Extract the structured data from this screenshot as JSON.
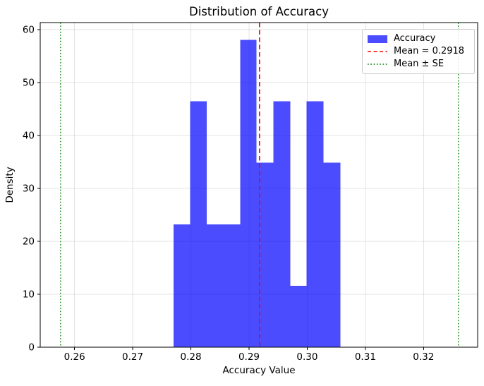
{
  "chart_data": {
    "type": "bar",
    "subtype": "histogram",
    "title": "Distribution of Accuracy",
    "xlabel": "Accuracy Value",
    "ylabel": "Density",
    "series_label": "Accuracy",
    "bin_edges": [
      0.277,
      0.2799,
      0.2827,
      0.2856,
      0.2885,
      0.2913,
      0.2942,
      0.2971,
      0.2999,
      0.3028,
      0.3057
    ],
    "densities": [
      23.2,
      46.5,
      23.2,
      23.2,
      58.1,
      34.9,
      46.5,
      11.6,
      46.5,
      34.9
    ],
    "counts": [
      2,
      4,
      2,
      2,
      5,
      3,
      4,
      1,
      4,
      3
    ],
    "mean_line": {
      "label": "Mean = 0.2918",
      "value": 0.2918,
      "style": "dashed"
    },
    "se_lines": {
      "label": "Mean ± SE",
      "values": [
        0.2576,
        0.326
      ],
      "style": "dotted"
    },
    "x_ticks": [
      0.26,
      0.27,
      0.28,
      0.29,
      0.3,
      0.31,
      0.32
    ],
    "x_tick_labels": [
      "0.26",
      "0.27",
      "0.28",
      "0.29",
      "0.30",
      "0.31",
      "0.32"
    ],
    "y_ticks": [
      0,
      10,
      20,
      30,
      40,
      50,
      60
    ],
    "y_tick_labels": [
      "0",
      "10",
      "20",
      "30",
      "40",
      "50",
      "60"
    ],
    "xlim": [
      0.2541,
      0.3293
    ],
    "ylim": [
      0,
      61.35
    ],
    "grid": true,
    "legend_position": "upper right",
    "legend": {
      "items": [
        {
          "label": "Accuracy",
          "swatch": "patch",
          "color": "#0000ff",
          "opacity": 0.7
        },
        {
          "label": "Mean = 0.2918",
          "swatch": "line-dashed",
          "color": "#ff0000"
        },
        {
          "label": "Mean ± SE",
          "swatch": "line-dotted",
          "color": "#008000"
        }
      ]
    },
    "colors": {
      "bar": "#0000ff",
      "bar_alpha": 0.7,
      "mean_line": "#ff0000",
      "se_line": "#008000",
      "grid": "#b0b0b0",
      "spine": "#000000",
      "text": "#000000"
    }
  }
}
